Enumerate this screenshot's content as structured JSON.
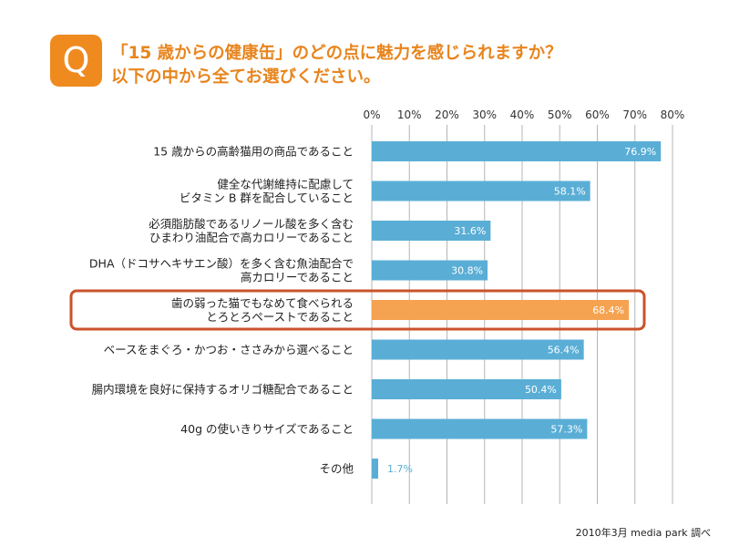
{
  "header": {
    "badge": "Q",
    "title_line1": "「15 歳からの健康缶」のどの点に魅力を感じられますか？",
    "title_line2": "以下の中から全てお選びください。"
  },
  "source": "2010年3月 media park 調べ",
  "colors": {
    "accent": "#ef8a1f",
    "bar": "#5aaed6",
    "highlight_bar": "#f5a351",
    "highlight_frame": "#c9532b",
    "label_small": "#5aaed6"
  },
  "chart_data": {
    "type": "bar",
    "orientation": "horizontal",
    "xlim": [
      0,
      80
    ],
    "ticks": [
      "0%",
      "10%",
      "20%",
      "30%",
      "40%",
      "50%",
      "60%",
      "70%",
      "80%"
    ],
    "grid": true,
    "highlight_index": 4,
    "categories": [
      [
        "15 歳からの高齢猫用の商品であること"
      ],
      [
        "健全な代謝維持に配慮して",
        "ビタミン B 群を配合していること"
      ],
      [
        "必須脂肪酸であるリノール酸を多く含む",
        "ひまわり油配合で高カロリーであること"
      ],
      [
        "DHA（ドコサヘキサエン酸）を多く含む魚油配合で",
        "高カロリーであること"
      ],
      [
        "歯の弱った猫でもなめて食べられる",
        "とろとろペーストであること"
      ],
      [
        "ベースをまぐろ・かつお・ささみから選べること"
      ],
      [
        "腸内環境を良好に保持するオリゴ糖配合であること"
      ],
      [
        "40g の使いきりサイズであること"
      ],
      [
        "その他"
      ]
    ],
    "values": [
      76.9,
      58.1,
      31.6,
      30.8,
      68.4,
      56.4,
      50.4,
      57.3,
      1.7
    ],
    "value_labels": [
      "76.9%",
      "58.1%",
      "31.6%",
      "30.8%",
      "68.4%",
      "56.4%",
      "50.4%",
      "57.3%",
      "1.7%"
    ]
  }
}
